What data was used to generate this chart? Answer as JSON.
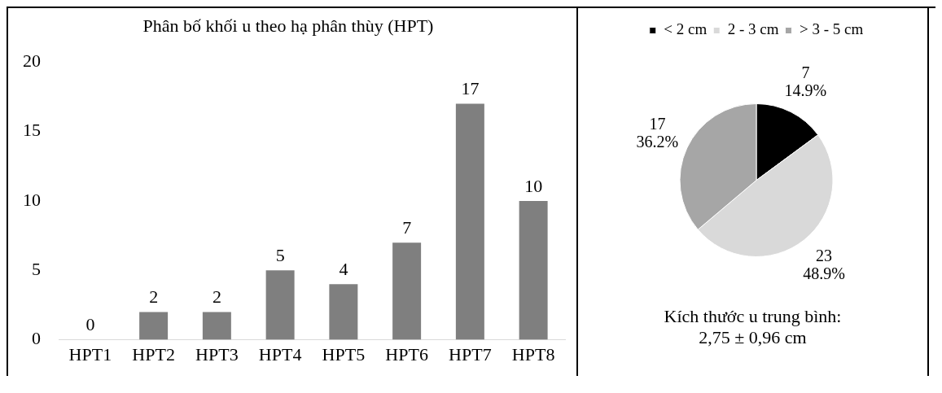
{
  "chart_data": [
    {
      "type": "bar",
      "title": "Phân bố khối u theo hạ phân thùy (HPT)",
      "categories": [
        "HPT1",
        "HPT2",
        "HPT3",
        "HPT4",
        "HPT5",
        "HPT6",
        "HPT7",
        "HPT8"
      ],
      "values": [
        0,
        2,
        2,
        5,
        4,
        7,
        17,
        10
      ],
      "color": "#7f7f7f",
      "ylim": [
        0,
        20
      ],
      "yticks": [
        0,
        5,
        10,
        15,
        20
      ],
      "grid": false,
      "legend": false,
      "data_labels": true
    },
    {
      "type": "pie",
      "categories": [
        "< 2 cm",
        "2 - 3 cm",
        "> 3 - 5 cm"
      ],
      "values": [
        7,
        23,
        17
      ],
      "colors": [
        "#000000",
        "#d9d9d9",
        "#a6a6a6"
      ],
      "value_labels": [
        "7\n14.9%",
        "23\n48.9%",
        "17\n36.2%"
      ],
      "legend": "top",
      "annotations": [
        "Kích thước u trung bình:\n2,75 ± 0,96 cm"
      ]
    }
  ]
}
